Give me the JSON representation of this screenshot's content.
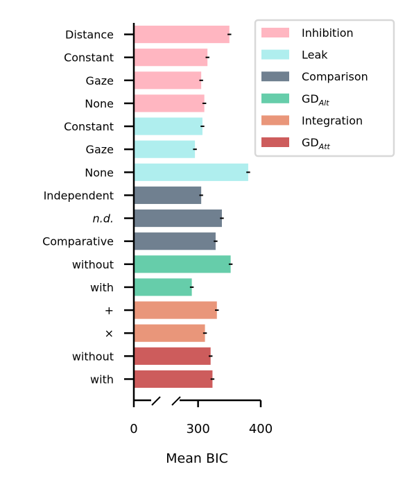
{
  "chart_data": {
    "type": "bar",
    "orientation": "horizontal",
    "categories": [
      "Distance",
      "Constant",
      "Gaze",
      "None",
      "Constant",
      "Gaze",
      "None",
      "Independent",
      "n.d.",
      "Comparative",
      "without",
      "with",
      "+",
      "×",
      "without",
      "with"
    ],
    "values": [
      350,
      315,
      305,
      310,
      307,
      295,
      380,
      305,
      338,
      328,
      352,
      290,
      330,
      311,
      320,
      323
    ],
    "errors": [
      3,
      3,
      3,
      3,
      3,
      3,
      3,
      3,
      3,
      3,
      3,
      3,
      3,
      3,
      3,
      3
    ],
    "groups": [
      "Inhibition",
      "Inhibition",
      "Inhibition",
      "Inhibition",
      "Leak",
      "Leak",
      "Leak",
      "Comparison",
      "Comparison",
      "Comparison",
      "GD_Alt",
      "GD_Alt",
      "Integration",
      "Integration",
      "GD_Att",
      "GD_Att"
    ],
    "xlabel": "Mean BIC",
    "xticks": [
      "0",
      "300",
      "400"
    ],
    "axis_break": [
      30,
      265
    ],
    "xlim": [
      0,
      400
    ],
    "legend": [
      {
        "name": "Inhibition",
        "base": "Inhibition",
        "sub": "",
        "color": "#ffb6c1"
      },
      {
        "name": "Leak",
        "base": "Leak",
        "sub": "",
        "color": "#afeeee"
      },
      {
        "name": "Comparison",
        "base": "Comparison",
        "sub": "",
        "color": "#708090"
      },
      {
        "name": "GD_Alt",
        "base": "GD",
        "sub": "Alt",
        "color": "#66cdaa"
      },
      {
        "name": "Integration",
        "base": "Integration",
        "sub": "",
        "color": "#e9967a"
      },
      {
        "name": "GD_Att",
        "base": "GD",
        "sub": "Att",
        "color": "#cd5c5c"
      }
    ],
    "legend_position": "top-right",
    "grid": false
  }
}
